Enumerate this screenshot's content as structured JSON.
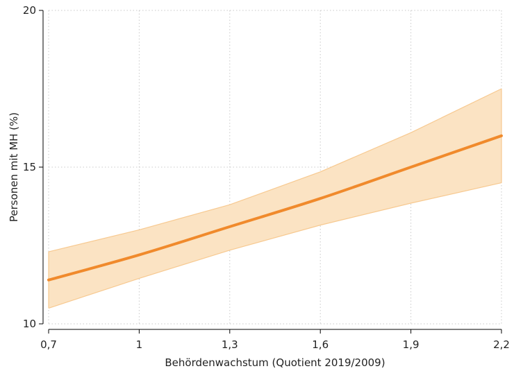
{
  "chart_data": {
    "type": "line",
    "title": "",
    "xlabel": "Behördenwachstum (Quotient 2019/2009)",
    "ylabel": "Personen mit MH (%)",
    "xlim": [
      0.7,
      2.2
    ],
    "ylim": [
      10,
      20
    ],
    "xticks": [
      {
        "value": 0.7,
        "label": "0,7"
      },
      {
        "value": 1.0,
        "label": "1"
      },
      {
        "value": 1.3,
        "label": "1,3"
      },
      {
        "value": 1.6,
        "label": "1,6"
      },
      {
        "value": 1.9,
        "label": "1,9"
      },
      {
        "value": 2.2,
        "label": "2,2"
      }
    ],
    "yticks": [
      {
        "value": 10,
        "label": "10"
      },
      {
        "value": 15,
        "label": "15"
      },
      {
        "value": 20,
        "label": "20"
      }
    ],
    "grid": true,
    "legend": "none",
    "series": [
      {
        "x": [
          0.7,
          1.0,
          1.3,
          1.6,
          1.9,
          2.2
        ],
        "values": [
          11.4,
          12.2,
          13.1,
          14.0,
          15.0,
          16.0
        ],
        "lower": [
          10.5,
          11.45,
          12.35,
          13.15,
          13.85,
          14.5
        ],
        "upper": [
          12.3,
          13.0,
          13.8,
          14.85,
          16.1,
          17.5
        ]
      }
    ],
    "colors": {
      "line": "#f08a2c",
      "band_fill": "#fbe3c3",
      "band_edge": "#f7c990",
      "grid": "#c8c8c8",
      "axis": "#000000"
    }
  }
}
